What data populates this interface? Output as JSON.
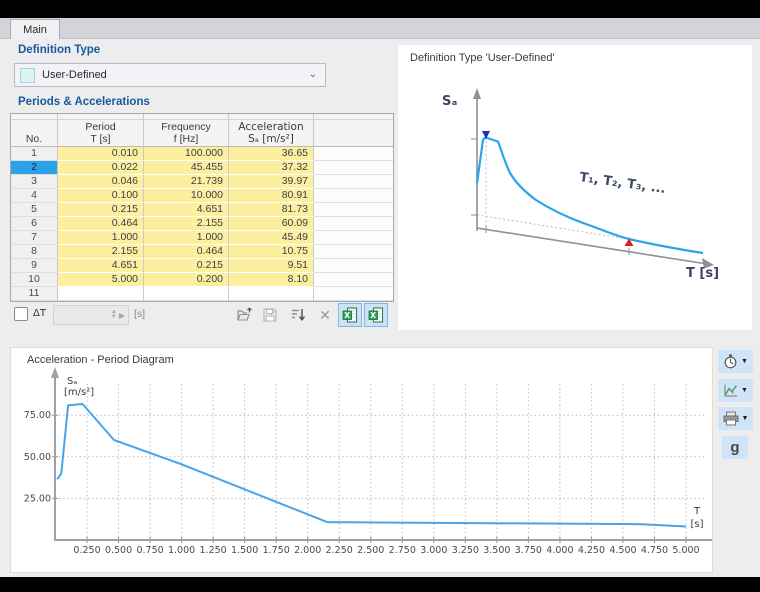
{
  "tab_label": "Main",
  "colors": {
    "accent_blue": "#17599f",
    "selection_blue": "#2ba1ea",
    "table_yellow": "#fcef9e",
    "curve_blue": "#47a3ea",
    "marker_red": "#e31e1e",
    "marker_navy": "#1e2cc8"
  },
  "left_panel": {
    "definition_type_heading": "Definition Type",
    "definition_type_value": "User-Defined",
    "periods_heading": "Periods & Accelerations",
    "table": {
      "col_no": "No.",
      "col_period_line1": "Period",
      "col_period_line2": "T [s]",
      "col_freq_line1": "Frequency",
      "col_freq_line2": "f [Hz]",
      "col_accel_line1": "Acceleration",
      "col_accel_line2": "Sₐ [m/s²]",
      "selected_row_no": "2",
      "rows": [
        {
          "no": "1",
          "period": "0.010",
          "frequency": "100.000",
          "acceleration": "36.65"
        },
        {
          "no": "2",
          "period": "0.022",
          "frequency": "45.455",
          "acceleration": "37.32"
        },
        {
          "no": "3",
          "period": "0.046",
          "frequency": "21.739",
          "acceleration": "39.97"
        },
        {
          "no": "4",
          "period": "0.100",
          "frequency": "10.000",
          "acceleration": "80.91"
        },
        {
          "no": "5",
          "period": "0.215",
          "frequency": "4.651",
          "acceleration": "81.73"
        },
        {
          "no": "6",
          "period": "0.464",
          "frequency": "2.155",
          "acceleration": "60.09"
        },
        {
          "no": "7",
          "period": "1.000",
          "frequency": "1.000",
          "acceleration": "45.49"
        },
        {
          "no": "8",
          "period": "2.155",
          "frequency": "0.464",
          "acceleration": "10.75"
        },
        {
          "no": "9",
          "period": "4.651",
          "frequency": "0.215",
          "acceleration": "9.51"
        },
        {
          "no": "10",
          "period": "5.000",
          "frequency": "0.200",
          "acceleration": "8.10"
        },
        {
          "no": "11",
          "period": "",
          "frequency": "",
          "acceleration": ""
        }
      ]
    },
    "delta_t": {
      "label": "ΔT",
      "unit": "[s]",
      "value": "",
      "checked": false
    },
    "toolbar_icons": [
      "import-table",
      "save-table",
      "sort",
      "delete",
      "excel-import",
      "excel-export"
    ]
  },
  "preview_panel": {
    "title": "Definition Type 'User-Defined'",
    "y_label": "Sₐ",
    "x_label": "T [s]",
    "annotation": "T₁, T₂, T₃, ..."
  },
  "chart_panel": {
    "title": "Acceleration - Period Diagram",
    "y_label_line1": "Sₐ",
    "y_label_line2": "[m/s²]",
    "x_label_line1": "T",
    "x_label_line2": "[s]"
  },
  "chart_data": {
    "type": "line",
    "title": "Acceleration - Period Diagram",
    "xlabel": "T [s]",
    "ylabel": "Sₐ [m/s²]",
    "xlim": [
      0,
      5.25
    ],
    "ylim": [
      0,
      90
    ],
    "grid": "dotted",
    "x": [
      0.01,
      0.022,
      0.046,
      0.1,
      0.215,
      0.464,
      1.0,
      2.155,
      4.651,
      5.0
    ],
    "y": [
      36.65,
      37.32,
      39.97,
      80.91,
      81.73,
      60.09,
      45.49,
      10.75,
      9.51,
      8.1
    ],
    "x_tick_labels": [
      "0.250",
      "0.500",
      "0.750",
      "1.000",
      "1.250",
      "1.500",
      "1.750",
      "2.000",
      "2.250",
      "2.500",
      "2.750",
      "3.000",
      "3.250",
      "3.500",
      "3.750",
      "4.000",
      "4.250",
      "4.500",
      "4.750",
      "5.000"
    ],
    "y_tick_labels": [
      "25.00",
      "50.00",
      "75.00"
    ]
  },
  "side_toolbar": {
    "g_label": "g"
  }
}
